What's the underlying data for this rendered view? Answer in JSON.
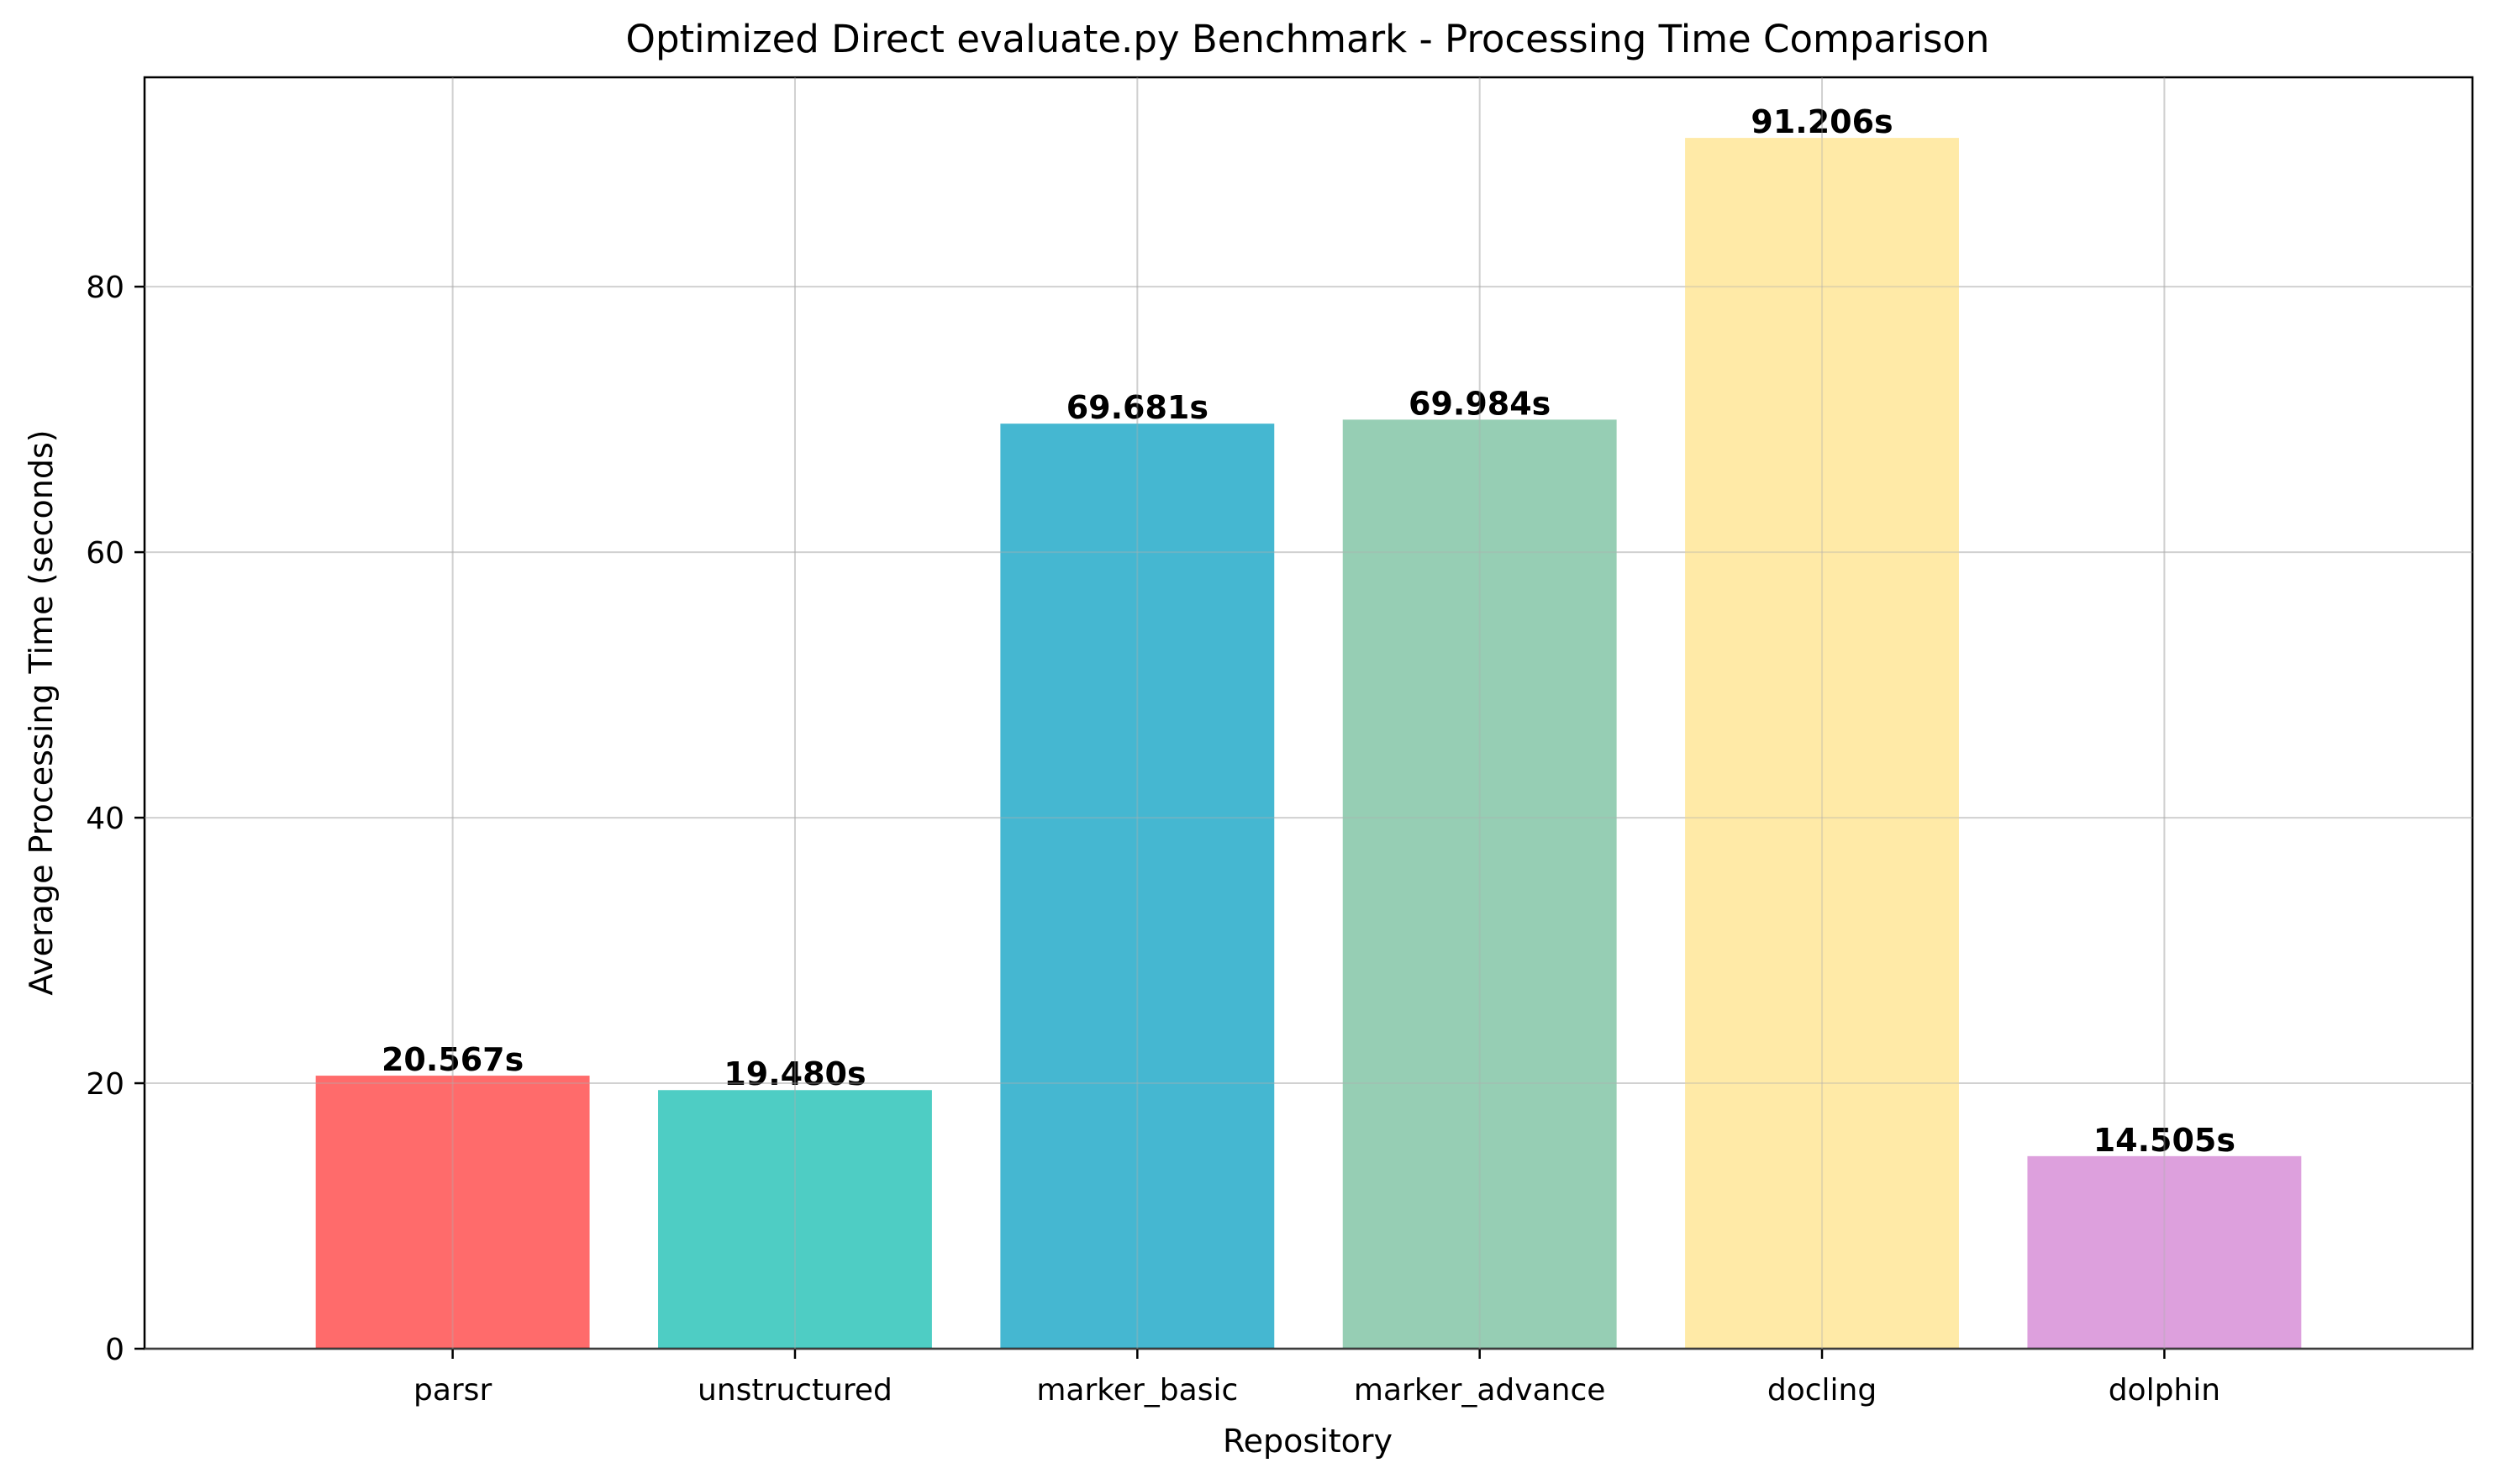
{
  "chart_data": {
    "type": "bar",
    "title": "Optimized Direct evaluate.py Benchmark - Processing Time Comparison",
    "xlabel": "Repository",
    "ylabel": "Average Processing Time (seconds)",
    "categories": [
      "parsr",
      "unstructured",
      "marker_basic",
      "marker_advance",
      "docling",
      "dolphin"
    ],
    "values": [
      20.567,
      19.48,
      69.681,
      69.984,
      91.206,
      14.505
    ],
    "data_labels": [
      "20.567s",
      "19.480s",
      "69.681s",
      "69.984s",
      "91.206s",
      "14.505s"
    ],
    "colors": [
      "#ff6b6b",
      "#4ecdc4",
      "#45b7d1",
      "#96ceb4",
      "#ffeaa7",
      "#dda0dd"
    ],
    "ylim": [
      0,
      95.77
    ],
    "yticks": [
      0,
      20,
      40,
      60,
      80
    ],
    "grid": true
  }
}
